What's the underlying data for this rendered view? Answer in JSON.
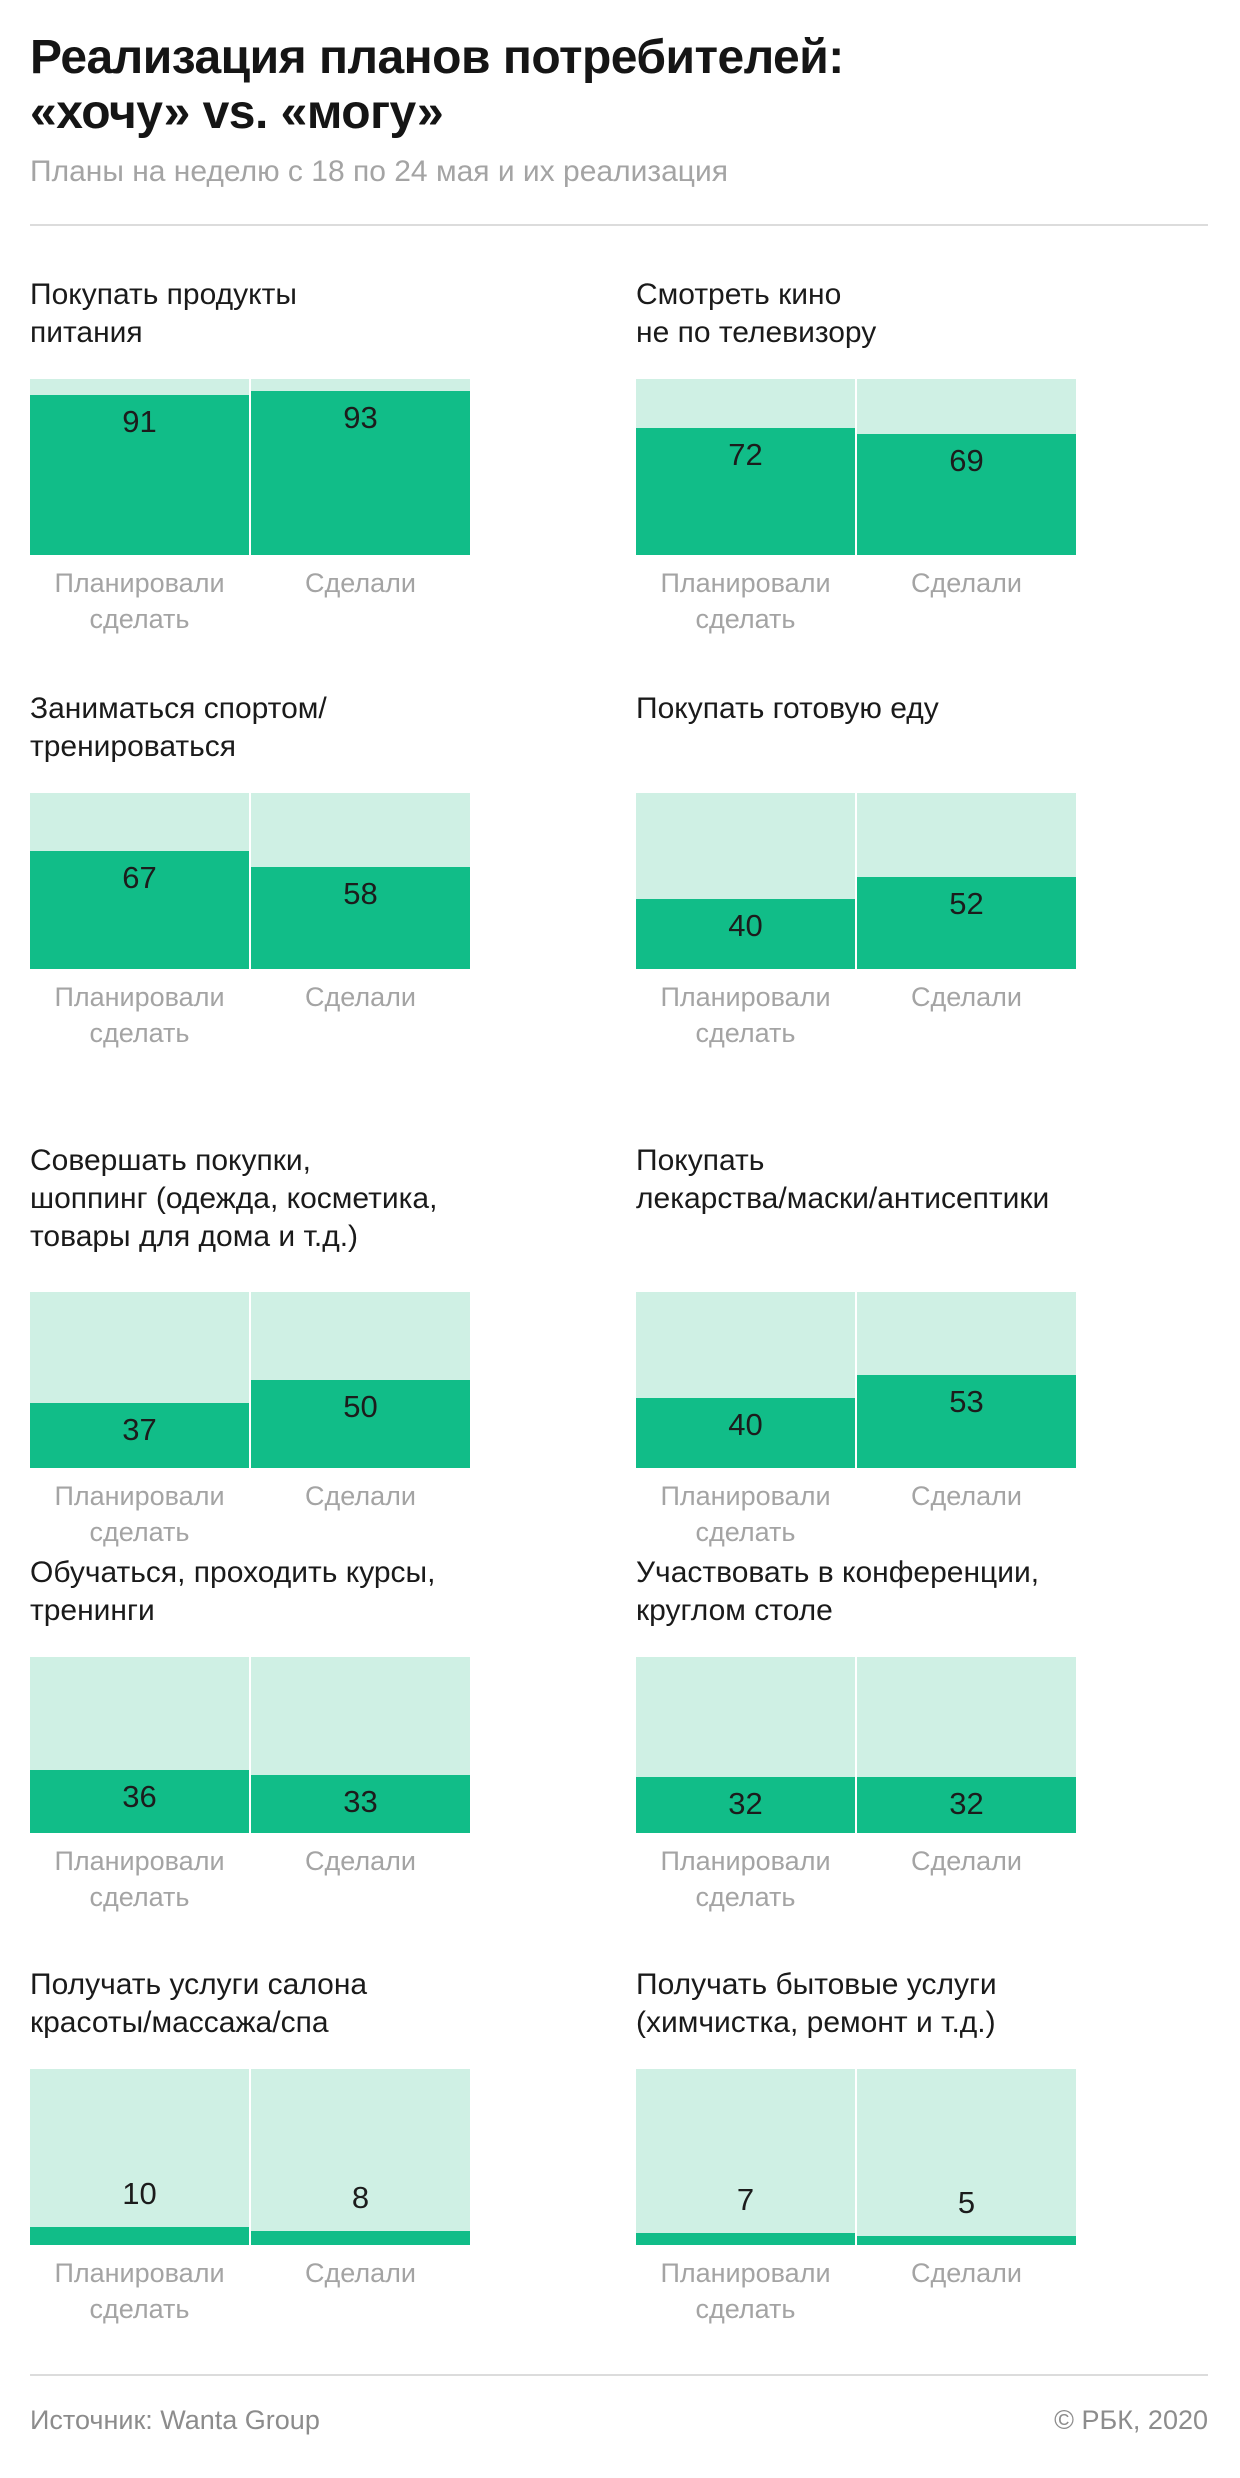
{
  "title": "Реализация планов потребителей:\n«хочу» vs. «могу»",
  "subtitle": "Планы на неделю с 18 по 24 мая и их реализация",
  "colors": {
    "planned_bg": "#cff0e4",
    "fill": "#11bd88"
  },
  "labels": {
    "planned": "Планировали\nсделать",
    "done": "Сделали"
  },
  "source": "Источник: Wanta Group",
  "copyright": "© РБК, 2020",
  "chart_data": [
    {
      "type": "bar",
      "title": "Покупать продукты\nпитания",
      "categories": [
        "Планировали сделать",
        "Сделали"
      ],
      "values": [
        91,
        93
      ],
      "ylim": [
        0,
        100
      ],
      "unit": "%"
    },
    {
      "type": "bar",
      "title": "Смотреть кино\nне по телевизору",
      "categories": [
        "Планировали сделать",
        "Сделали"
      ],
      "values": [
        72,
        69
      ],
      "ylim": [
        0,
        100
      ],
      "unit": "%"
    },
    {
      "type": "bar",
      "title": "Заниматься спортом/\nтренироваться",
      "categories": [
        "Планировали сделать",
        "Сделали"
      ],
      "values": [
        67,
        58
      ],
      "ylim": [
        0,
        100
      ],
      "unit": "%"
    },
    {
      "type": "bar",
      "title": "Покупать готовую еду",
      "categories": [
        "Планировали сделать",
        "Сделали"
      ],
      "values": [
        40,
        52
      ],
      "ylim": [
        0,
        100
      ],
      "unit": "%"
    },
    {
      "type": "bar",
      "title": "Совершать покупки,\nшоппинг (одежда, косметика,\nтовары для дома и т.д.)",
      "categories": [
        "Планировали сделать",
        "Сделали"
      ],
      "values": [
        37,
        50
      ],
      "ylim": [
        0,
        100
      ],
      "unit": "%"
    },
    {
      "type": "bar",
      "title": "Покупать\nлекарства/маски/антисептики",
      "categories": [
        "Планировали сделать",
        "Сделали"
      ],
      "values": [
        40,
        53
      ],
      "ylim": [
        0,
        100
      ],
      "unit": "%"
    },
    {
      "type": "bar",
      "title": "Обучаться, проходить курсы,\nтренинги",
      "categories": [
        "Планировали сделать",
        "Сделали"
      ],
      "values": [
        36,
        33
      ],
      "ylim": [
        0,
        100
      ],
      "unit": "%"
    },
    {
      "type": "bar",
      "title": "Участвовать в конференции,\nкруглом столе",
      "categories": [
        "Планировали сделать",
        "Сделали"
      ],
      "values": [
        32,
        32
      ],
      "ylim": [
        0,
        100
      ],
      "unit": "%"
    },
    {
      "type": "bar",
      "title": "Получать услуги салона\nкрасоты/массажа/спа",
      "categories": [
        "Планировали сделать",
        "Сделали"
      ],
      "values": [
        10,
        8
      ],
      "ylim": [
        0,
        100
      ],
      "unit": "%"
    },
    {
      "type": "bar",
      "title": "Получать бытовые услуги\n(химчистка, ремонт и т.д.)",
      "categories": [
        "Планировали сделать",
        "Сделали"
      ],
      "values": [
        7,
        5
      ],
      "ylim": [
        0,
        100
      ],
      "unit": "%"
    }
  ]
}
